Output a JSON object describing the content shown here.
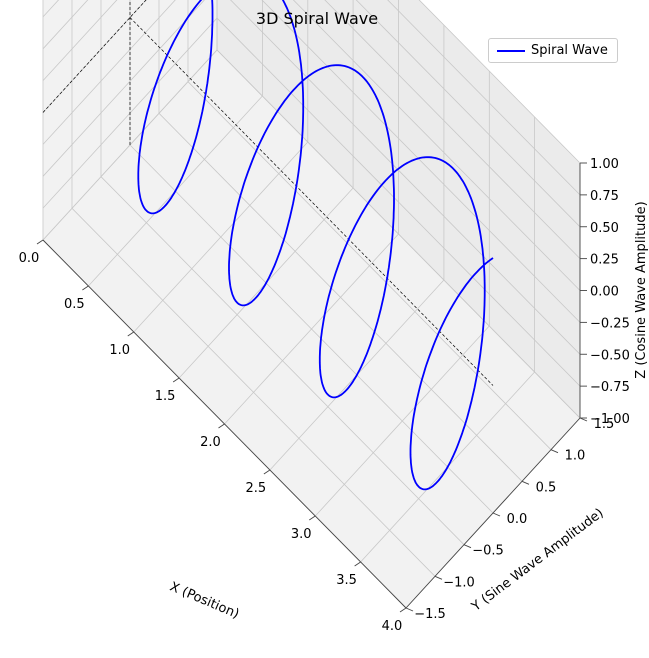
{
  "chart_data": {
    "type": "line3d",
    "title": "3D Spiral Wave",
    "xlabel": "X (Position)",
    "ylabel": "Y (Sine Wave Amplitude)",
    "zlabel": "Z (Cosine Wave Amplitude)",
    "xlim": [
      0,
      4
    ],
    "ylim": [
      -1.5,
      1.5
    ],
    "zlim": [
      -1,
      1
    ],
    "x_ticks": [
      "0.0",
      "0.5",
      "1.0",
      "1.5",
      "2.0",
      "2.5",
      "3.0",
      "3.5",
      "4.0"
    ],
    "y_ticks": [
      "−1.5",
      "−1.0",
      "−0.5",
      "0.0",
      "0.5",
      "1.0",
      "1.5"
    ],
    "z_ticks": [
      "−1.00",
      "−0.75",
      "−0.50",
      "−0.25",
      "0.00",
      "0.25",
      "0.50",
      "0.75",
      "1.00"
    ],
    "grid": true,
    "legend": {
      "position": "top-right",
      "entries": [
        "Spiral Wave"
      ]
    },
    "series": [
      {
        "name": "Spiral Wave",
        "color": "#0000ff",
        "equation": "x = t, y = sin(2πt), z = cos(2πt), t in [0, 4]",
        "turns": 4
      }
    ]
  }
}
